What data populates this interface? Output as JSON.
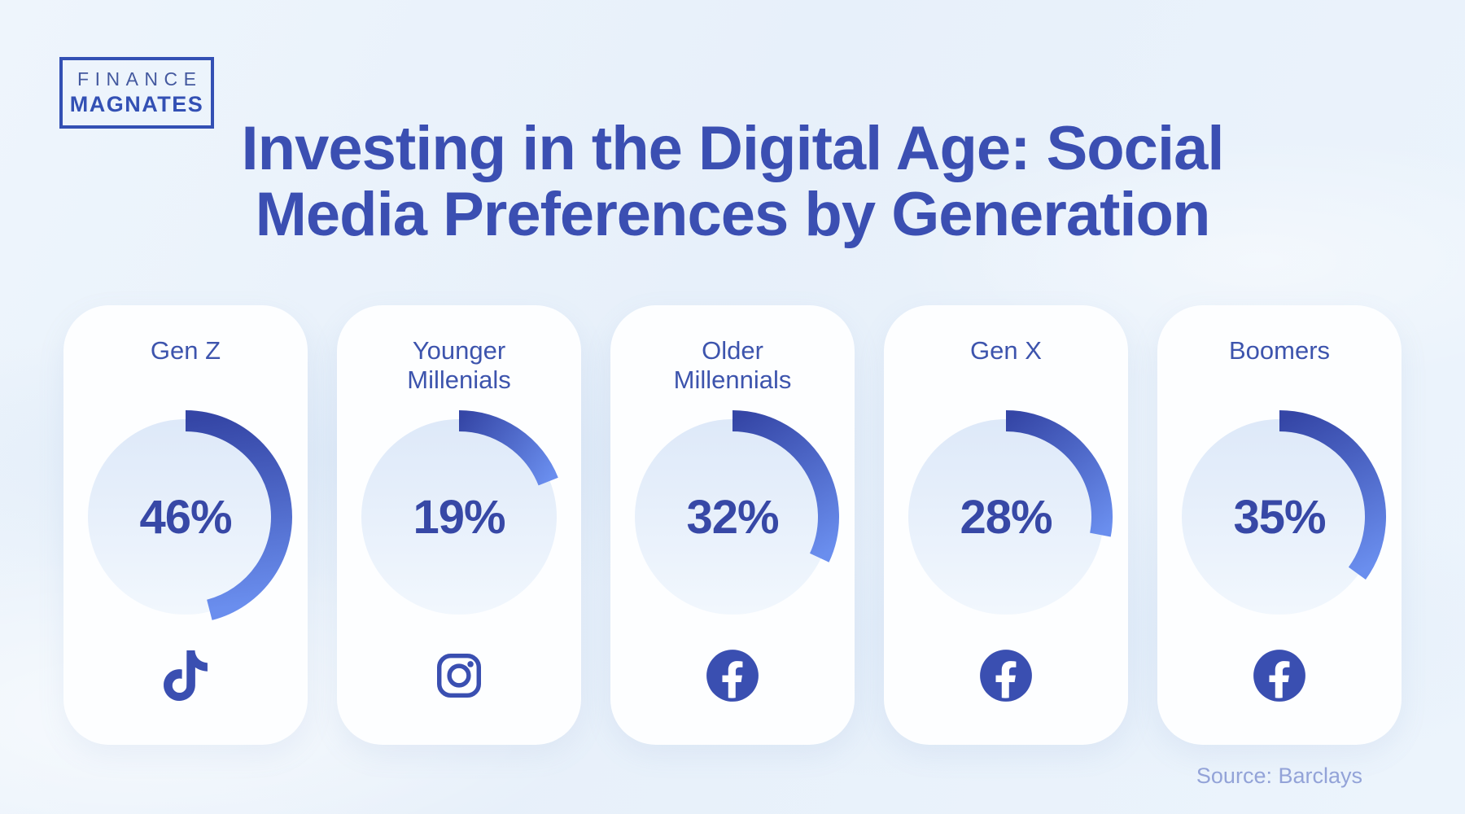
{
  "page": {
    "background": "#eaf2fb",
    "accent": "#3a4fb1",
    "title_color": "#3b4fb2",
    "arc_start_color": "#3546a6",
    "arc_end_color": "#6a8eee",
    "circle_top_color": "#dbe7f8",
    "circle_bottom_color": "#f4f9fe",
    "source_color": "#93a3d8"
  },
  "logo": {
    "line1": "FINANCE",
    "line2": "MAGNATES"
  },
  "title": {
    "line1": "Investing in the Digital Age: Social",
    "line2": "Media Preferences by Generation"
  },
  "source": {
    "text": "Source: Barclays"
  },
  "chart_data": {
    "type": "pie",
    "subtype": "donut-progress-multiples",
    "title": "Investing in the Digital Age: Social Media Preferences by Generation",
    "categories": [
      "Gen Z",
      "Younger Millenials",
      "Older Millennials",
      "Gen X",
      "Boomers"
    ],
    "values": [
      46,
      19,
      32,
      28,
      35
    ],
    "unit": "%",
    "icons": [
      "tiktok-icon",
      "instagram-icon",
      "facebook-icon",
      "facebook-icon",
      "facebook-icon"
    ],
    "value_range": [
      0,
      100
    ],
    "arc_start": "12 o'clock, clockwise",
    "source": "Source: Barclays"
  },
  "cards": [
    {
      "label": "Gen Z",
      "value": 46,
      "display": "46%",
      "icon": "tiktok-icon"
    },
    {
      "label": "Younger Millenials",
      "value": 19,
      "display": "19%",
      "icon": "instagram-icon"
    },
    {
      "label": "Older Millennials",
      "value": 32,
      "display": "32%",
      "icon": "facebook-icon"
    },
    {
      "label": "Gen X",
      "value": 28,
      "display": "28%",
      "icon": "facebook-icon"
    },
    {
      "label": "Boomers",
      "value": 35,
      "display": "35%",
      "icon": "facebook-icon"
    }
  ]
}
